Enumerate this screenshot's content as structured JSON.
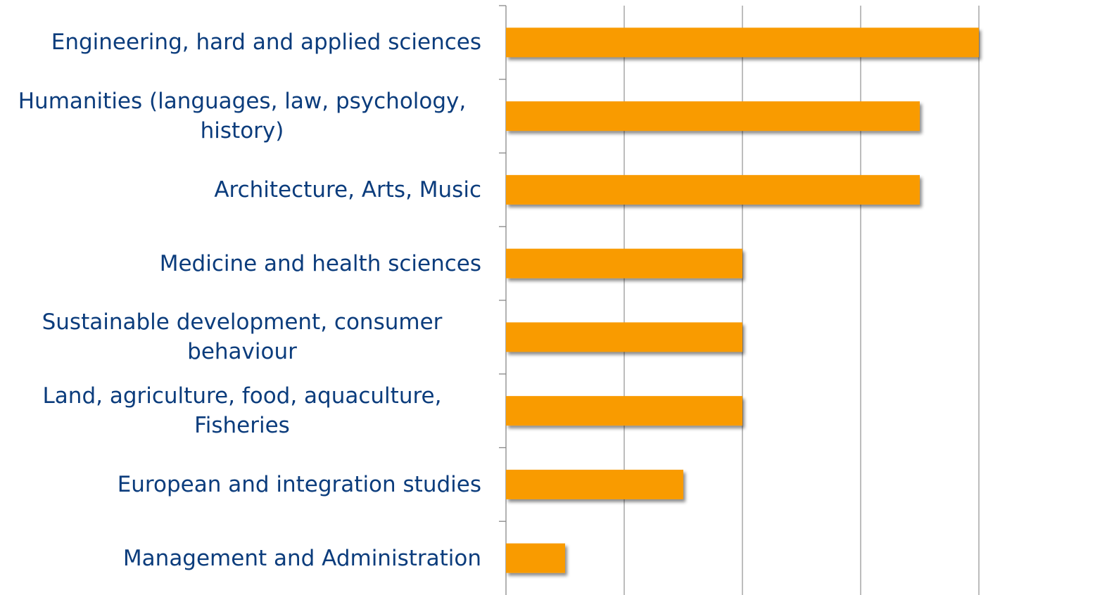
{
  "chart_data": {
    "type": "bar",
    "orientation": "horizontal",
    "categories": [
      "Engineering, hard and applied sciences",
      "Humanities (languages, law, psychology, history)",
      "Architecture, Arts, Music",
      "Medicine and health sciences",
      "Sustainable development, consumer behaviour",
      "Land, agriculture, food, aquaculture, Fisheries",
      "European and integration studies",
      "Management and Administration"
    ],
    "values": [
      8,
      7,
      7,
      4,
      4,
      4,
      3,
      1
    ],
    "color": "#f99b00",
    "xlim": [
      0,
      8
    ],
    "xticks": [
      0,
      2,
      4,
      6,
      8
    ],
    "grid": true
  }
}
